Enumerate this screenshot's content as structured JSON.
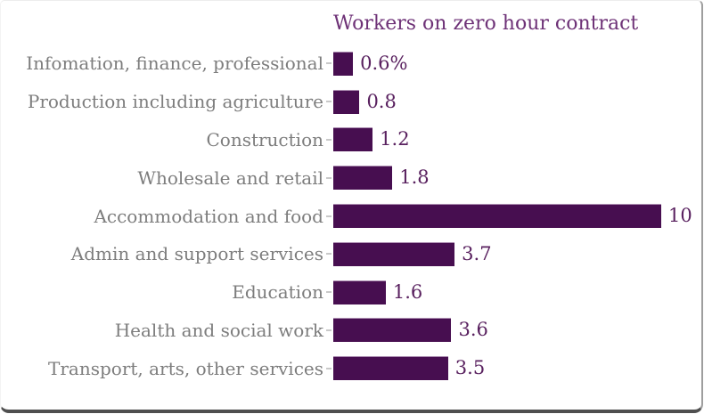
{
  "chart_data": {
    "type": "bar",
    "orientation": "horizontal",
    "title": "Workers on zero hour contract",
    "categories": [
      "Infomation, finance, professional",
      "Production including agriculture",
      "Construction",
      "Wholesale and retail",
      "Accommodation and food",
      "Admin and support services",
      "Education",
      "Health and social work",
      "Transport, arts, other services"
    ],
    "values": [
      0.6,
      0.8,
      1.2,
      1.8,
      10,
      3.7,
      1.6,
      3.6,
      3.5
    ],
    "value_labels": [
      "0.6%",
      "0.8",
      "1.2",
      "1.8",
      "10",
      "3.7",
      "1.6",
      "3.6",
      "3.5"
    ],
    "xlabel": "",
    "ylabel": "",
    "xlim": [
      0,
      10
    ],
    "grid": false,
    "legend": "none",
    "colors": {
      "bar": "#470e50",
      "title": "#6e3277",
      "category_label": "#7d7d7d",
      "value_label": "#59215f",
      "tick": "#c9c9c9",
      "frame_right": "#9e9e9e",
      "frame_bottom": "#4f4f4f"
    }
  }
}
